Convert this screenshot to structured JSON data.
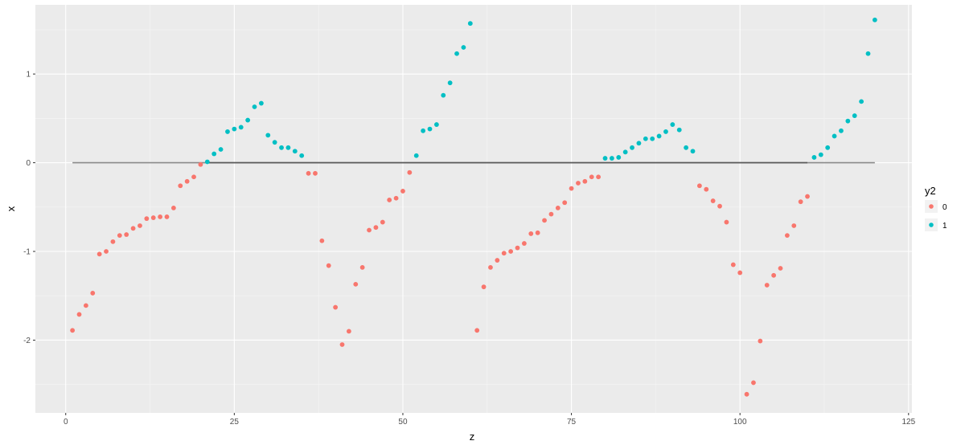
{
  "chart_data": {
    "type": "scatter",
    "xlabel": "z",
    "ylabel": "x",
    "xlim": [
      -4.5,
      125.5
    ],
    "ylim": [
      -2.82,
      1.78
    ],
    "x_ticks": [
      0,
      25,
      50,
      75,
      100,
      125
    ],
    "y_ticks": [
      -2,
      -1,
      0,
      1
    ],
    "x_tick_labels": [
      "0",
      "25",
      "50",
      "75",
      "100",
      "125"
    ],
    "y_tick_labels": [
      "-2",
      "-1",
      "0",
      "1"
    ],
    "grid": true,
    "legend": {
      "title": "y2",
      "position": "right",
      "entries": [
        {
          "label": "0",
          "color": "#F8766D"
        },
        {
          "label": "1",
          "color": "#00BFC4"
        }
      ]
    },
    "reference_line": {
      "y": 0,
      "x_start": 1,
      "x_end": 120,
      "color_outer": "#8a8a8a",
      "color_inner": "#595959",
      "inner_x_start": 21,
      "inner_x_end": 110
    },
    "series": [
      {
        "name": "0",
        "color": "#F8766D",
        "points": [
          [
            1,
            -1.89
          ],
          [
            2,
            -1.71
          ],
          [
            3,
            -1.61
          ],
          [
            4,
            -1.47
          ],
          [
            5,
            -1.03
          ],
          [
            6,
            -1.0
          ],
          [
            7,
            -0.89
          ],
          [
            8,
            -0.82
          ],
          [
            9,
            -0.81
          ],
          [
            10,
            -0.74
          ],
          [
            11,
            -0.71
          ],
          [
            12,
            -0.63
          ],
          [
            13,
            -0.62
          ],
          [
            14,
            -0.61
          ],
          [
            15,
            -0.61
          ],
          [
            16,
            -0.51
          ],
          [
            17,
            -0.26
          ],
          [
            18,
            -0.21
          ],
          [
            19,
            -0.16
          ],
          [
            20,
            -0.02
          ],
          [
            36,
            -0.12
          ],
          [
            37,
            -0.12
          ],
          [
            38,
            -0.88
          ],
          [
            39,
            -1.16
          ],
          [
            40,
            -1.63
          ],
          [
            41,
            -2.05
          ],
          [
            42,
            -1.9
          ],
          [
            43,
            -1.37
          ],
          [
            44,
            -1.18
          ],
          [
            45,
            -0.76
          ],
          [
            46,
            -0.73
          ],
          [
            47,
            -0.67
          ],
          [
            48,
            -0.42
          ],
          [
            49,
            -0.4
          ],
          [
            50,
            -0.32
          ],
          [
            51,
            -0.11
          ],
          [
            61,
            -1.89
          ],
          [
            62,
            -1.4
          ],
          [
            63,
            -1.18
          ],
          [
            64,
            -1.1
          ],
          [
            65,
            -1.02
          ],
          [
            66,
            -1.0
          ],
          [
            67,
            -0.96
          ],
          [
            68,
            -0.91
          ],
          [
            69,
            -0.8
          ],
          [
            70,
            -0.79
          ],
          [
            71,
            -0.65
          ],
          [
            72,
            -0.58
          ],
          [
            73,
            -0.51
          ],
          [
            74,
            -0.45
          ],
          [
            75,
            -0.29
          ],
          [
            76,
            -0.23
          ],
          [
            77,
            -0.21
          ],
          [
            78,
            -0.16
          ],
          [
            79,
            -0.16
          ],
          [
            94,
            -0.26
          ],
          [
            95,
            -0.3
          ],
          [
            96,
            -0.43
          ],
          [
            97,
            -0.49
          ],
          [
            98,
            -0.67
          ],
          [
            99,
            -1.15
          ],
          [
            100,
            -1.24
          ],
          [
            101,
            -2.61
          ],
          [
            102,
            -2.48
          ],
          [
            103,
            -2.01
          ],
          [
            104,
            -1.38
          ],
          [
            105,
            -1.27
          ],
          [
            106,
            -1.19
          ],
          [
            107,
            -0.82
          ],
          [
            108,
            -0.71
          ],
          [
            109,
            -0.44
          ],
          [
            110,
            -0.38
          ]
        ]
      },
      {
        "name": "1",
        "color": "#00BFC4",
        "points": [
          [
            21,
            0.01
          ],
          [
            22,
            0.1
          ],
          [
            23,
            0.15
          ],
          [
            24,
            0.35
          ],
          [
            25,
            0.38
          ],
          [
            26,
            0.4
          ],
          [
            27,
            0.48
          ],
          [
            28,
            0.63
          ],
          [
            29,
            0.67
          ],
          [
            30,
            0.31
          ],
          [
            31,
            0.23
          ],
          [
            32,
            0.17
          ],
          [
            33,
            0.17
          ],
          [
            34,
            0.13
          ],
          [
            35,
            0.08
          ],
          [
            52,
            0.08
          ],
          [
            53,
            0.36
          ],
          [
            54,
            0.38
          ],
          [
            55,
            0.43
          ],
          [
            56,
            0.76
          ],
          [
            57,
            0.9
          ],
          [
            58,
            1.23
          ],
          [
            59,
            1.3
          ],
          [
            60,
            1.57
          ],
          [
            80,
            0.05
          ],
          [
            81,
            0.05
          ],
          [
            82,
            0.06
          ],
          [
            83,
            0.12
          ],
          [
            84,
            0.17
          ],
          [
            85,
            0.22
          ],
          [
            86,
            0.27
          ],
          [
            87,
            0.27
          ],
          [
            88,
            0.3
          ],
          [
            89,
            0.35
          ],
          [
            90,
            0.43
          ],
          [
            91,
            0.37
          ],
          [
            92,
            0.17
          ],
          [
            93,
            0.13
          ],
          [
            111,
            0.06
          ],
          [
            112,
            0.09
          ],
          [
            113,
            0.17
          ],
          [
            114,
            0.3
          ],
          [
            115,
            0.36
          ],
          [
            116,
            0.47
          ],
          [
            117,
            0.53
          ],
          [
            118,
            0.69
          ],
          [
            119,
            1.23
          ],
          [
            120,
            1.61
          ]
        ]
      }
    ]
  }
}
